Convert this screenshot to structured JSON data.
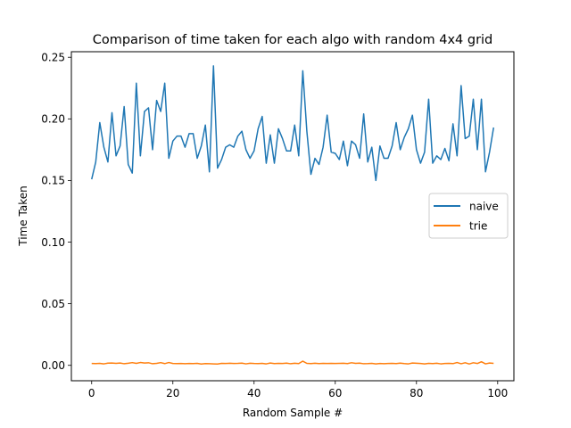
{
  "chart_data": {
    "type": "line",
    "title": "Comparison of time taken for each algo with random 4x4 grid",
    "xlabel": "Random Sample #",
    "ylabel": "Time Taken",
    "xlim": [
      -5,
      104
    ],
    "ylim": [
      -0.0125,
      0.2545
    ],
    "xticks": [
      0,
      20,
      40,
      60,
      80,
      100
    ],
    "xtick_labels": [
      "0",
      "20",
      "40",
      "60",
      "80",
      "100"
    ],
    "yticks": [
      0.0,
      0.05,
      0.1,
      0.15,
      0.2,
      0.25
    ],
    "ytick_labels": [
      "0.00",
      "0.05",
      "0.10",
      "0.15",
      "0.20",
      "0.25"
    ],
    "grid": false,
    "legend_position": "center-right",
    "series": [
      {
        "name": "naive",
        "color": "#1f77b4",
        "x": [
          0,
          1,
          2,
          3,
          4,
          5,
          6,
          7,
          8,
          9,
          10,
          11,
          12,
          13,
          14,
          15,
          16,
          17,
          18,
          19,
          20,
          21,
          22,
          23,
          24,
          25,
          26,
          27,
          28,
          29,
          30,
          31,
          32,
          33,
          34,
          35,
          36,
          37,
          38,
          39,
          40,
          41,
          42,
          43,
          44,
          45,
          46,
          47,
          48,
          49,
          50,
          51,
          52,
          53,
          54,
          55,
          56,
          57,
          58,
          59,
          60,
          61,
          62,
          63,
          64,
          65,
          66,
          67,
          68,
          69,
          70,
          71,
          72,
          73,
          74,
          75,
          76,
          77,
          78,
          79,
          80,
          81,
          82,
          83,
          84,
          85,
          86,
          87,
          88,
          89,
          90,
          91,
          92,
          93,
          94,
          95,
          96,
          97,
          98,
          99
        ],
        "values": [
          0.151,
          0.165,
          0.197,
          0.177,
          0.165,
          0.205,
          0.17,
          0.178,
          0.21,
          0.163,
          0.156,
          0.229,
          0.17,
          0.206,
          0.209,
          0.175,
          0.215,
          0.206,
          0.229,
          0.168,
          0.182,
          0.186,
          0.186,
          0.177,
          0.188,
          0.188,
          0.168,
          0.178,
          0.195,
          0.157,
          0.243,
          0.16,
          0.167,
          0.177,
          0.179,
          0.177,
          0.186,
          0.19,
          0.175,
          0.168,
          0.174,
          0.192,
          0.202,
          0.164,
          0.187,
          0.164,
          0.192,
          0.184,
          0.174,
          0.174,
          0.195,
          0.17,
          0.239,
          0.19,
          0.155,
          0.168,
          0.163,
          0.177,
          0.203,
          0.173,
          0.172,
          0.167,
          0.182,
          0.162,
          0.182,
          0.179,
          0.168,
          0.204,
          0.165,
          0.177,
          0.15,
          0.178,
          0.168,
          0.168,
          0.178,
          0.197,
          0.175,
          0.185,
          0.192,
          0.203,
          0.175,
          0.164,
          0.173,
          0.216,
          0.164,
          0.17,
          0.167,
          0.176,
          0.166,
          0.196,
          0.17,
          0.227,
          0.184,
          0.186,
          0.216,
          0.175,
          0.216,
          0.157,
          0.173,
          0.193
        ]
      },
      {
        "name": "trie",
        "color": "#ff7f0e",
        "x": [
          0,
          1,
          2,
          3,
          4,
          5,
          6,
          7,
          8,
          9,
          10,
          11,
          12,
          13,
          14,
          15,
          16,
          17,
          18,
          19,
          20,
          21,
          22,
          23,
          24,
          25,
          26,
          27,
          28,
          29,
          30,
          31,
          32,
          33,
          34,
          35,
          36,
          37,
          38,
          39,
          40,
          41,
          42,
          43,
          44,
          45,
          46,
          47,
          48,
          49,
          50,
          51,
          52,
          53,
          54,
          55,
          56,
          57,
          58,
          59,
          60,
          61,
          62,
          63,
          64,
          65,
          66,
          67,
          68,
          69,
          70,
          71,
          72,
          73,
          74,
          75,
          76,
          77,
          78,
          79,
          80,
          81,
          82,
          83,
          84,
          85,
          86,
          87,
          88,
          89,
          90,
          91,
          92,
          93,
          94,
          95,
          96,
          97,
          98,
          99
        ],
        "values": [
          0.0015,
          0.0014,
          0.0016,
          0.0012,
          0.0018,
          0.0019,
          0.0016,
          0.0019,
          0.0013,
          0.0017,
          0.0022,
          0.0016,
          0.0023,
          0.0019,
          0.0021,
          0.0013,
          0.0016,
          0.0022,
          0.0014,
          0.0023,
          0.0015,
          0.0014,
          0.0015,
          0.0013,
          0.0015,
          0.0014,
          0.0016,
          0.0011,
          0.0014,
          0.0013,
          0.0012,
          0.0011,
          0.0016,
          0.0015,
          0.0017,
          0.0015,
          0.0016,
          0.0018,
          0.0012,
          0.0017,
          0.0015,
          0.0014,
          0.0016,
          0.0012,
          0.0019,
          0.0014,
          0.0016,
          0.0015,
          0.0018,
          0.0013,
          0.0017,
          0.0014,
          0.0034,
          0.0016,
          0.0014,
          0.0017,
          0.0014,
          0.0016,
          0.0015,
          0.0016,
          0.0015,
          0.0016,
          0.0017,
          0.0014,
          0.0021,
          0.0016,
          0.0018,
          0.0013,
          0.0014,
          0.0016,
          0.0012,
          0.0015,
          0.0013,
          0.0015,
          0.0016,
          0.0014,
          0.0018,
          0.0014,
          0.0012,
          0.0019,
          0.0017,
          0.0015,
          0.0012,
          0.0016,
          0.0014,
          0.0017,
          0.0012,
          0.0015,
          0.0016,
          0.0014,
          0.0023,
          0.0013,
          0.0021,
          0.0011,
          0.0021,
          0.0015,
          0.0029,
          0.0012,
          0.0019,
          0.0016
        ]
      }
    ]
  }
}
